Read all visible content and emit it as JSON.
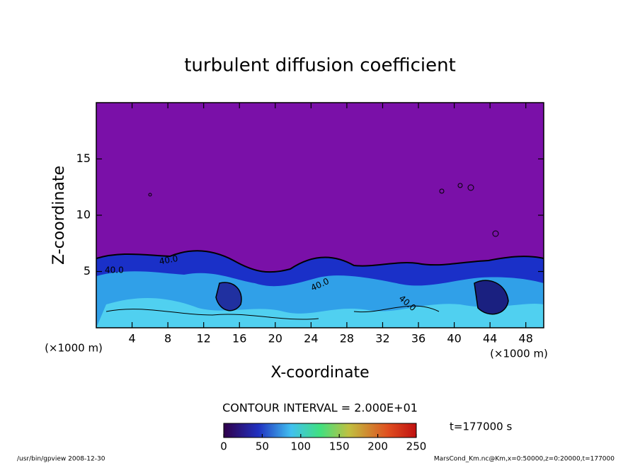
{
  "chart_data": {
    "type": "contour",
    "title": "turbulent diffusion coefficient",
    "x_label": "X-coordinate",
    "y_label": "Z-coordinate",
    "x_unit_label": "(×1000 m)",
    "xlim": [
      0,
      50
    ],
    "xticks": [
      4,
      8,
      12,
      16,
      20,
      24,
      28,
      32,
      36,
      40,
      44,
      48
    ],
    "ylim": [
      0,
      20
    ],
    "yticks": [
      5,
      10,
      15
    ],
    "contour_interval_label": "CONTOUR INTERVAL = 2.000E+01",
    "contour_labels": [
      "40.0",
      "40.0",
      "40.0",
      "40.0"
    ],
    "colorbar": {
      "lim": [
        0,
        250
      ],
      "ticks": [
        0,
        50,
        100,
        150,
        200,
        250
      ]
    },
    "time_label": "t=177000 s",
    "footer_left": "/usr/bin/gpview   2008-12-30",
    "footer_right": "MarsCond_Km.nc@Km,x=0:50000,z=0:20000,t=177000"
  }
}
